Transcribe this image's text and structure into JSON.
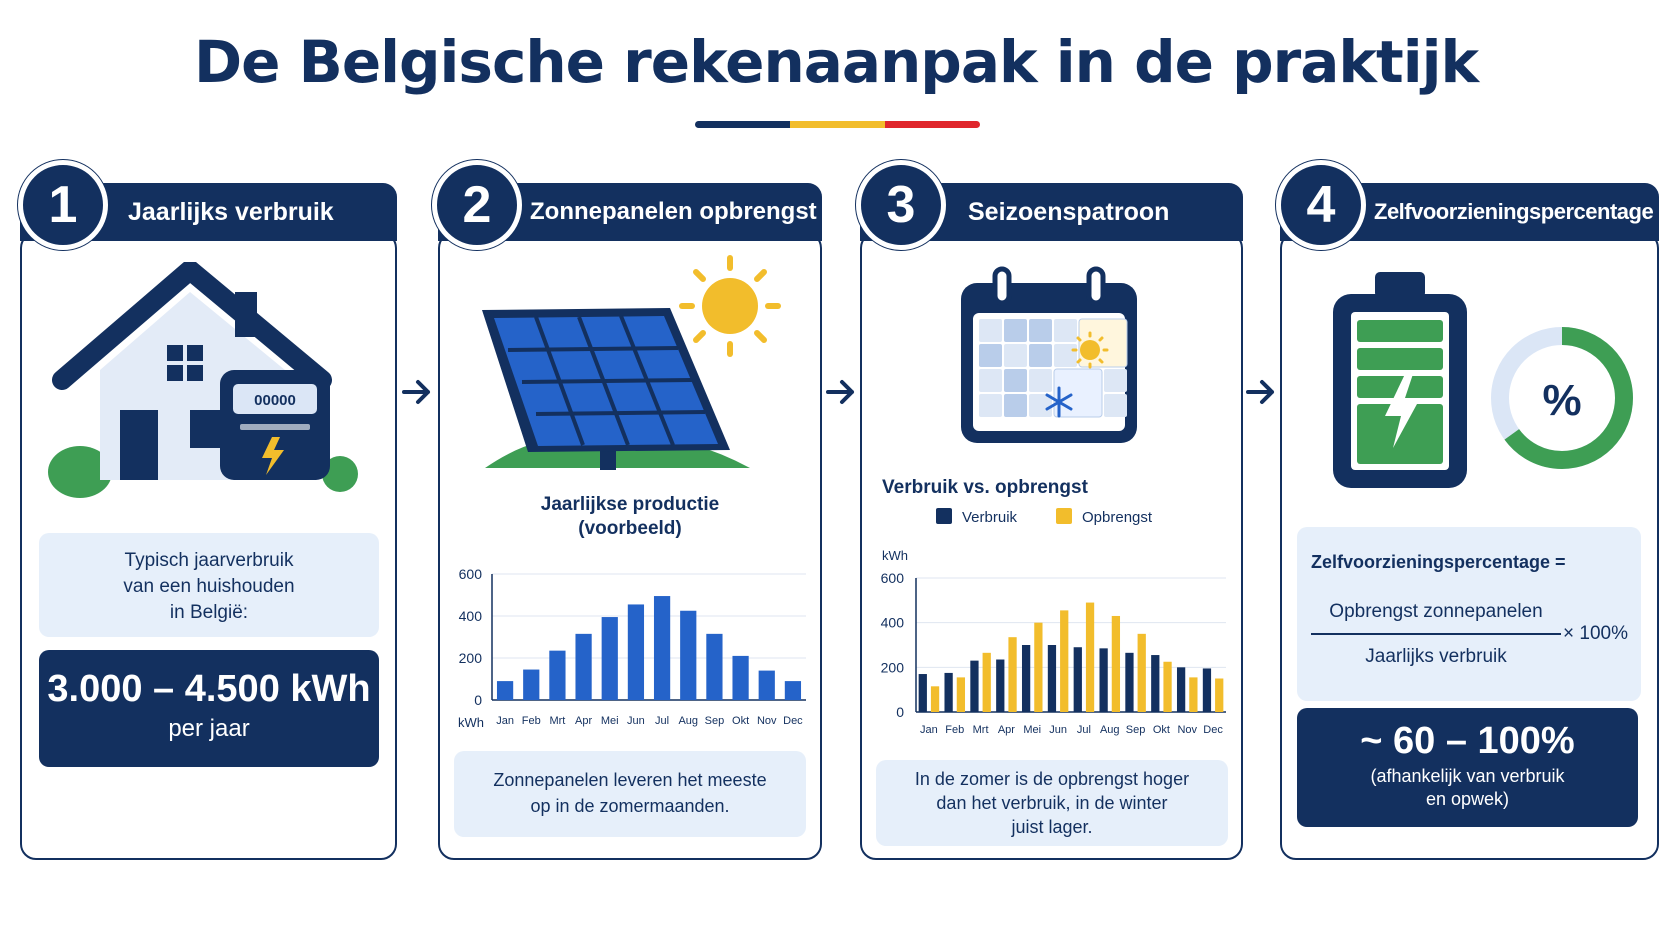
{
  "title": "De Belgische rekenaanpak in de praktijk",
  "colors": {
    "navy": "#13305f",
    "blue": "#2563c9",
    "yellow": "#f2bd2c",
    "red": "#e0262c",
    "green": "#3e9e54",
    "light": "#e6effa"
  },
  "steps": [
    {
      "number": "1",
      "heading": "Jaarlijks verbruik"
    },
    {
      "number": "2",
      "heading": "Zonnepanelen opbrengst"
    },
    {
      "number": "3",
      "heading": "Seizoenspatroon"
    },
    {
      "number": "4",
      "heading": "Zelfvoorzieningspercentage"
    }
  ],
  "panel1": {
    "meter_display": "00000",
    "desc": [
      "Typisch jaarverbruik",
      "van een huishouden",
      "in België:"
    ],
    "value": "3.000 – 4.500 kWh",
    "unit": "per jaar"
  },
  "panel2": {
    "chart_title": [
      "Jaarlijkse productie",
      "(voorbeeld)"
    ],
    "caption": [
      "Zonnepanelen leveren het meeste",
      "op in de zomermaanden."
    ]
  },
  "panel3": {
    "chart_title": "Verbruik vs. opbrengst",
    "caption": [
      "In de zomer is de opbrengst hoger",
      "dan het verbruik, in de winter",
      "juist lager."
    ]
  },
  "panel4": {
    "percent_symbol": "%",
    "formula_label": "Zelfvoorzieningspercentage =",
    "numerator": "Opbrengst zonnepanelen",
    "denominator": "Jaarlijks verbruik",
    "multiplier": "× 100%",
    "result": "~ 60 – 100%",
    "result_note": [
      "(afhankelijk van verbruik",
      "en opwek)"
    ],
    "gauge_fraction": 0.65
  },
  "chart_data": [
    {
      "type": "bar",
      "categories": [
        "Jan",
        "Feb",
        "Mrt",
        "Apr",
        "Mei",
        "Jun",
        "Jul",
        "Aug",
        "Sep",
        "Okt",
        "Nov",
        "Dec"
      ],
      "values": [
        90,
        145,
        235,
        315,
        395,
        455,
        495,
        425,
        315,
        210,
        140,
        90
      ],
      "ylabel": "kWh",
      "yticks": [
        0,
        200,
        400,
        600
      ],
      "ylim": [
        0,
        600
      ],
      "grid": true
    },
    {
      "type": "bar",
      "categories": [
        "Jan",
        "Feb",
        "Mrt",
        "Apr",
        "Mei",
        "Jun",
        "Jul",
        "Aug",
        "Sep",
        "Okt",
        "Nov",
        "Dec"
      ],
      "series": [
        {
          "name": "Verbruik",
          "values": [
            170,
            175,
            230,
            235,
            300,
            300,
            290,
            285,
            265,
            255,
            200,
            195
          ]
        },
        {
          "name": "Opbrengst",
          "values": [
            115,
            155,
            265,
            335,
            400,
            455,
            490,
            430,
            350,
            225,
            155,
            150
          ]
        }
      ],
      "ylabel": "kWh",
      "yticks": [
        0,
        200,
        400,
        600
      ],
      "ylim": [
        0,
        600
      ],
      "grid": true,
      "legend": "top"
    }
  ]
}
